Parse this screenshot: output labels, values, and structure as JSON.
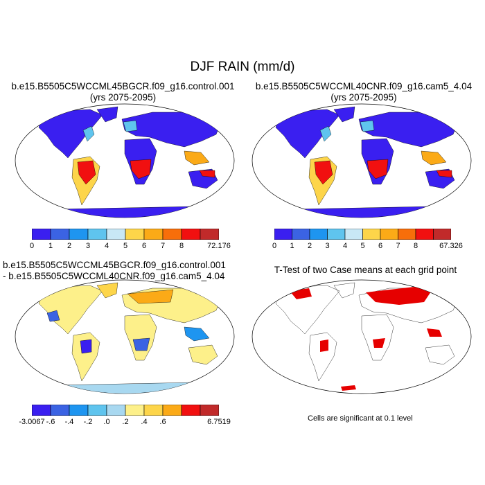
{
  "figure": {
    "title": "DJF RAIN (mm/d)"
  },
  "panels": [
    {
      "id": "case1",
      "title_lines": [
        "b.e15.B5505C5WCCML45BGCR.f09_g16.control.001",
        "(yrs 2075-2095)"
      ],
      "colorbar": {
        "colors": [
          "#3a1ff0",
          "#3b63e3",
          "#1e95f0",
          "#5fc4ee",
          "#c8e8f6",
          "#fdd54a",
          "#fbaa17",
          "#f76e0a",
          "#f11010",
          "#c12a2a"
        ],
        "labels": [
          "0",
          "1",
          "2",
          "3",
          "4",
          "5",
          "6",
          "7",
          "8",
          "72.176"
        ]
      }
    },
    {
      "id": "case2",
      "title_lines": [
        "b.e15.B5505C5WCCML40CNR.f09_g16.cam5_4.04",
        "(yrs 2075-2095)"
      ],
      "colorbar": {
        "colors": [
          "#3a1ff0",
          "#3b63e3",
          "#1e95f0",
          "#5fc4ee",
          "#c8e8f6",
          "#fdd54a",
          "#fbaa17",
          "#f76e0a",
          "#f11010",
          "#c12a2a"
        ],
        "labels": [
          "0",
          "1",
          "2",
          "3",
          "4",
          "5",
          "6",
          "7",
          "8",
          "67.326"
        ]
      }
    },
    {
      "id": "difference",
      "title_lines": [
        "b.e15.B5505C5WCCML45BGCR.f09_g16.control.001",
        "- b.e15.B5505C5WCCML40CNR.f09_g16.cam5_4.04"
      ],
      "colorbar": {
        "colors": [
          "#3a1ff0",
          "#3b63e3",
          "#1e95f0",
          "#5fc4ee",
          "#a8d8f0",
          "#fdf08a",
          "#fdd54a",
          "#fbaa17",
          "#f11010",
          "#c12a2a"
        ],
        "labels": [
          "-3.0067",
          "-.6",
          "-.4",
          "-.2",
          ".0",
          ".2",
          ".4",
          ".6",
          "6.7519"
        ]
      }
    },
    {
      "id": "ttest",
      "title_lines": [
        "T-Test of two Case means at each grid point"
      ],
      "note": "Cells are significant at 0.1 level"
    }
  ]
}
